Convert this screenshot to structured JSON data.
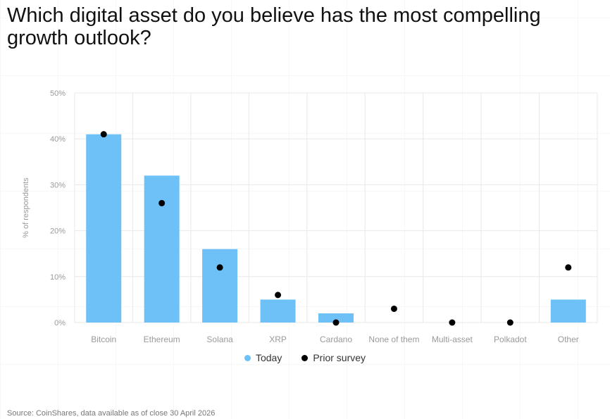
{
  "title": "Which digital asset do you believe has the most compelling growth outlook?",
  "source": "Source: CoinShares, data available as of close 30 April 2026",
  "colors": {
    "today": "#6ec1f7",
    "prior": "#000000",
    "grid": "#e8e8e8",
    "axis_text": "#9a9a9a"
  },
  "chart_data": {
    "type": "bar",
    "title": "Which digital asset do you believe has the most compelling growth outlook?",
    "ylabel": "% of respondents",
    "xlabel": "",
    "ylim": [
      0,
      50
    ],
    "yticks": [
      0,
      10,
      20,
      30,
      40,
      50
    ],
    "ytick_labels": [
      "0%",
      "10%",
      "20%",
      "30%",
      "40%",
      "50%"
    ],
    "grid": true,
    "legend_position": "bottom-center",
    "categories": [
      "Bitcoin",
      "Ethereum",
      "Solana",
      "XRP",
      "Cardano",
      "None of them",
      "Multi-asset",
      "Polkadot",
      "Other"
    ],
    "series": [
      {
        "name": "Today",
        "kind": "bar",
        "values": [
          41,
          32,
          16,
          5,
          2,
          0,
          0,
          0,
          5
        ]
      },
      {
        "name": "Prior survey",
        "kind": "dot",
        "values": [
          41,
          26,
          12,
          6,
          0,
          3,
          0,
          0,
          12
        ]
      }
    ]
  }
}
